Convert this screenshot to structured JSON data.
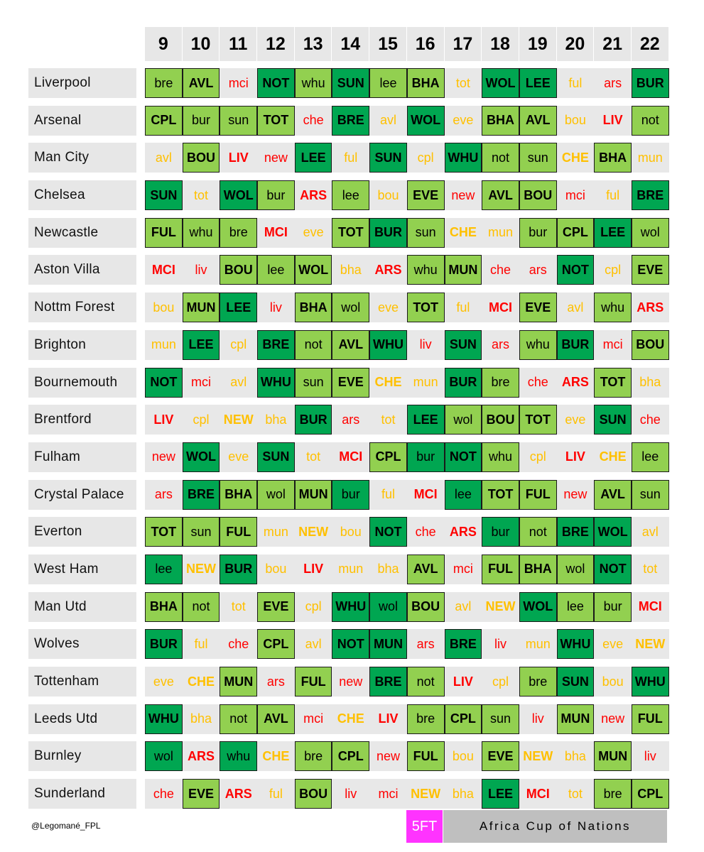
{
  "gameweeks": [
    "9",
    "10",
    "11",
    "12",
    "13",
    "14",
    "15",
    "16",
    "17",
    "18",
    "19",
    "20",
    "21",
    "22"
  ],
  "teams": [
    {
      "name": "Liverpool",
      "fixtures": [
        [
          "bre",
          "c2"
        ],
        [
          "AVL",
          "c2"
        ],
        [
          "mci",
          "c4"
        ],
        [
          "NOT",
          "c1"
        ],
        [
          "whu",
          "c2"
        ],
        [
          "SUN",
          "c1"
        ],
        [
          "lee",
          "c2"
        ],
        [
          "BHA",
          "c2"
        ],
        [
          "tot",
          "c3"
        ],
        [
          "WOL",
          "c1"
        ],
        [
          "LEE",
          "c1"
        ],
        [
          "ful",
          "c3"
        ],
        [
          "ars",
          "c4"
        ],
        [
          "BUR",
          "c1"
        ]
      ]
    },
    {
      "name": "Arsenal",
      "fixtures": [
        [
          "CPL",
          "c2"
        ],
        [
          "bur",
          "c2"
        ],
        [
          "sun",
          "c2"
        ],
        [
          "TOT",
          "c2"
        ],
        [
          "che",
          "c4"
        ],
        [
          "BRE",
          "c1"
        ],
        [
          "avl",
          "c3"
        ],
        [
          "WOL",
          "c1"
        ],
        [
          "eve",
          "c3"
        ],
        [
          "BHA",
          "c2"
        ],
        [
          "AVL",
          "c2"
        ],
        [
          "bou",
          "c3"
        ],
        [
          "LIV",
          "c4"
        ],
        [
          "not",
          "c2"
        ]
      ]
    },
    {
      "name": "Man City",
      "fixtures": [
        [
          "avl",
          "c3"
        ],
        [
          "BOU",
          "c2"
        ],
        [
          "LIV",
          "c4"
        ],
        [
          "new",
          "c4"
        ],
        [
          "LEE",
          "c1"
        ],
        [
          "ful",
          "c3"
        ],
        [
          "SUN",
          "c1"
        ],
        [
          "cpl",
          "c3"
        ],
        [
          "WHU",
          "c1"
        ],
        [
          "not",
          "c2"
        ],
        [
          "sun",
          "c2"
        ],
        [
          "CHE",
          "c3"
        ],
        [
          "BHA",
          "c2"
        ],
        [
          "mun",
          "c3"
        ]
      ]
    },
    {
      "name": "Chelsea",
      "fixtures": [
        [
          "SUN",
          "c1"
        ],
        [
          "tot",
          "c3"
        ],
        [
          "WOL",
          "c1"
        ],
        [
          "bur",
          "c2"
        ],
        [
          "ARS",
          "c4"
        ],
        [
          "lee",
          "c2"
        ],
        [
          "bou",
          "c3"
        ],
        [
          "EVE",
          "c2"
        ],
        [
          "new",
          "c4"
        ],
        [
          "AVL",
          "c2"
        ],
        [
          "BOU",
          "c2"
        ],
        [
          "mci",
          "c4"
        ],
        [
          "ful",
          "c3"
        ],
        [
          "BRE",
          "c1"
        ]
      ]
    },
    {
      "name": "Newcastle",
      "fixtures": [
        [
          "FUL",
          "c2"
        ],
        [
          "whu",
          "c2"
        ],
        [
          "bre",
          "c2"
        ],
        [
          "MCI",
          "c4"
        ],
        [
          "eve",
          "c3"
        ],
        [
          "TOT",
          "c2"
        ],
        [
          "BUR",
          "c1"
        ],
        [
          "sun",
          "c2"
        ],
        [
          "CHE",
          "c3"
        ],
        [
          "mun",
          "c3"
        ],
        [
          "bur",
          "c2"
        ],
        [
          "CPL",
          "c2"
        ],
        [
          "LEE",
          "c1"
        ],
        [
          "wol",
          "c2"
        ]
      ]
    },
    {
      "name": "Aston Villa",
      "fixtures": [
        [
          "MCI",
          "c4"
        ],
        [
          "liv",
          "c4"
        ],
        [
          "BOU",
          "c2"
        ],
        [
          "lee",
          "c2"
        ],
        [
          "WOL",
          "c2"
        ],
        [
          "bha",
          "c3"
        ],
        [
          "ARS",
          "c4"
        ],
        [
          "whu",
          "c2"
        ],
        [
          "MUN",
          "c2"
        ],
        [
          "che",
          "c4"
        ],
        [
          "ars",
          "c4"
        ],
        [
          "NOT",
          "c1"
        ],
        [
          "cpl",
          "c3"
        ],
        [
          "EVE",
          "c2"
        ]
      ]
    },
    {
      "name": "Nottm Forest",
      "fixtures": [
        [
          "bou",
          "c3"
        ],
        [
          "MUN",
          "c2"
        ],
        [
          "LEE",
          "c1"
        ],
        [
          "liv",
          "c4"
        ],
        [
          "BHA",
          "c2"
        ],
        [
          "wol",
          "c2"
        ],
        [
          "eve",
          "c3"
        ],
        [
          "TOT",
          "c2"
        ],
        [
          "ful",
          "c3"
        ],
        [
          "MCI",
          "c4"
        ],
        [
          "EVE",
          "c2"
        ],
        [
          "avl",
          "c3"
        ],
        [
          "whu",
          "c2"
        ],
        [
          "ARS",
          "c4"
        ]
      ]
    },
    {
      "name": "Brighton",
      "fixtures": [
        [
          "mun",
          "c3"
        ],
        [
          "LEE",
          "c1"
        ],
        [
          "cpl",
          "c3"
        ],
        [
          "BRE",
          "c1"
        ],
        [
          "not",
          "c2"
        ],
        [
          "AVL",
          "c2"
        ],
        [
          "WHU",
          "c1"
        ],
        [
          "liv",
          "c4"
        ],
        [
          "SUN",
          "c1"
        ],
        [
          "ars",
          "c4"
        ],
        [
          "whu",
          "c2"
        ],
        [
          "BUR",
          "c1"
        ],
        [
          "mci",
          "c4"
        ],
        [
          "BOU",
          "c2"
        ]
      ]
    },
    {
      "name": "Bournemouth",
      "fixtures": [
        [
          "NOT",
          "c1"
        ],
        [
          "mci",
          "c4"
        ],
        [
          "avl",
          "c3"
        ],
        [
          "WHU",
          "c1"
        ],
        [
          "sun",
          "c2"
        ],
        [
          "EVE",
          "c2"
        ],
        [
          "CHE",
          "c3"
        ],
        [
          "mun",
          "c3"
        ],
        [
          "BUR",
          "c1"
        ],
        [
          "bre",
          "c2"
        ],
        [
          "che",
          "c4"
        ],
        [
          "ARS",
          "c4"
        ],
        [
          "TOT",
          "c2"
        ],
        [
          "bha",
          "c3"
        ]
      ]
    },
    {
      "name": "Brentford",
      "fixtures": [
        [
          "LIV",
          "c4"
        ],
        [
          "cpl",
          "c3"
        ],
        [
          "NEW",
          "c3"
        ],
        [
          "bha",
          "c3"
        ],
        [
          "BUR",
          "c1"
        ],
        [
          "ars",
          "c4"
        ],
        [
          "tot",
          "c3"
        ],
        [
          "LEE",
          "c1"
        ],
        [
          "wol",
          "c2"
        ],
        [
          "BOU",
          "c2"
        ],
        [
          "TOT",
          "c2"
        ],
        [
          "eve",
          "c3"
        ],
        [
          "SUN",
          "c1"
        ],
        [
          "che",
          "c4"
        ]
      ]
    },
    {
      "name": "Fulham",
      "fixtures": [
        [
          "new",
          "c4"
        ],
        [
          "WOL",
          "c1"
        ],
        [
          "eve",
          "c3"
        ],
        [
          "SUN",
          "c1"
        ],
        [
          "tot",
          "c3"
        ],
        [
          "MCI",
          "c4"
        ],
        [
          "CPL",
          "c2"
        ],
        [
          "bur",
          "c1"
        ],
        [
          "NOT",
          "c1"
        ],
        [
          "whu",
          "c2"
        ],
        [
          "cpl",
          "c3"
        ],
        [
          "LIV",
          "c4"
        ],
        [
          "CHE",
          "c3"
        ],
        [
          "lee",
          "c2"
        ]
      ]
    },
    {
      "name": "Crystal Palace",
      "fixtures": [
        [
          "ars",
          "c4"
        ],
        [
          "BRE",
          "c1"
        ],
        [
          "BHA",
          "c2"
        ],
        [
          "wol",
          "c2"
        ],
        [
          "MUN",
          "c2"
        ],
        [
          "bur",
          "c1"
        ],
        [
          "ful",
          "c3"
        ],
        [
          "MCI",
          "c4"
        ],
        [
          "lee",
          "c1"
        ],
        [
          "TOT",
          "c2"
        ],
        [
          "FUL",
          "c2"
        ],
        [
          "new",
          "c4"
        ],
        [
          "AVL",
          "c2"
        ],
        [
          "sun",
          "c2"
        ]
      ]
    },
    {
      "name": "Everton",
      "fixtures": [
        [
          "TOT",
          "c2"
        ],
        [
          "sun",
          "c2"
        ],
        [
          "FUL",
          "c2"
        ],
        [
          "mun",
          "c3"
        ],
        [
          "NEW",
          "c3"
        ],
        [
          "bou",
          "c3"
        ],
        [
          "NOT",
          "c1"
        ],
        [
          "che",
          "c4"
        ],
        [
          "ARS",
          "c4"
        ],
        [
          "bur",
          "c1"
        ],
        [
          "not",
          "c2"
        ],
        [
          "BRE",
          "c1"
        ],
        [
          "WOL",
          "c1"
        ],
        [
          "avl",
          "c3"
        ]
      ]
    },
    {
      "name": "West Ham",
      "fixtures": [
        [
          "lee",
          "c1"
        ],
        [
          "NEW",
          "c3"
        ],
        [
          "BUR",
          "c1"
        ],
        [
          "bou",
          "c3"
        ],
        [
          "LIV",
          "c4"
        ],
        [
          "mun",
          "c3"
        ],
        [
          "bha",
          "c3"
        ],
        [
          "AVL",
          "c2"
        ],
        [
          "mci",
          "c4"
        ],
        [
          "FUL",
          "c2"
        ],
        [
          "BHA",
          "c2"
        ],
        [
          "wol",
          "c2"
        ],
        [
          "NOT",
          "c1"
        ],
        [
          "tot",
          "c3"
        ]
      ]
    },
    {
      "name": "Man Utd",
      "fixtures": [
        [
          "BHA",
          "c2"
        ],
        [
          "not",
          "c2"
        ],
        [
          "tot",
          "c3"
        ],
        [
          "EVE",
          "c2"
        ],
        [
          "cpl",
          "c3"
        ],
        [
          "WHU",
          "c1"
        ],
        [
          "wol",
          "c1"
        ],
        [
          "BOU",
          "c2"
        ],
        [
          "avl",
          "c3"
        ],
        [
          "NEW",
          "c3"
        ],
        [
          "WOL",
          "c1"
        ],
        [
          "lee",
          "c2"
        ],
        [
          "bur",
          "c2"
        ],
        [
          "MCI",
          "c4"
        ]
      ]
    },
    {
      "name": "Wolves",
      "fixtures": [
        [
          "BUR",
          "c1"
        ],
        [
          "ful",
          "c3"
        ],
        [
          "che",
          "c4"
        ],
        [
          "CPL",
          "c2"
        ],
        [
          "avl",
          "c3"
        ],
        [
          "NOT",
          "c1"
        ],
        [
          "MUN",
          "c1"
        ],
        [
          "ars",
          "c4"
        ],
        [
          "BRE",
          "c1"
        ],
        [
          "liv",
          "c4"
        ],
        [
          "mun",
          "c3"
        ],
        [
          "WHU",
          "c1"
        ],
        [
          "eve",
          "c3"
        ],
        [
          "NEW",
          "c3"
        ]
      ]
    },
    {
      "name": "Tottenham",
      "fixtures": [
        [
          "eve",
          "c3"
        ],
        [
          "CHE",
          "c3"
        ],
        [
          "MUN",
          "c2"
        ],
        [
          "ars",
          "c4"
        ],
        [
          "FUL",
          "c2"
        ],
        [
          "new",
          "c4"
        ],
        [
          "BRE",
          "c1"
        ],
        [
          "not",
          "c2"
        ],
        [
          "LIV",
          "c4"
        ],
        [
          "cpl",
          "c3"
        ],
        [
          "bre",
          "c2"
        ],
        [
          "SUN",
          "c1"
        ],
        [
          "bou",
          "c3"
        ],
        [
          "WHU",
          "c1"
        ]
      ]
    },
    {
      "name": "Leeds Utd",
      "fixtures": [
        [
          "WHU",
          "c1"
        ],
        [
          "bha",
          "c3"
        ],
        [
          "not",
          "c2"
        ],
        [
          "AVL",
          "c2"
        ],
        [
          "mci",
          "c4"
        ],
        [
          "CHE",
          "c3"
        ],
        [
          "LIV",
          "c4"
        ],
        [
          "bre",
          "c2"
        ],
        [
          "CPL",
          "c2"
        ],
        [
          "sun",
          "c2"
        ],
        [
          "liv",
          "c4"
        ],
        [
          "MUN",
          "c2"
        ],
        [
          "new",
          "c4"
        ],
        [
          "FUL",
          "c2"
        ]
      ]
    },
    {
      "name": "Burnley",
      "fixtures": [
        [
          "wol",
          "c1"
        ],
        [
          "ARS",
          "c4"
        ],
        [
          "whu",
          "c1"
        ],
        [
          "CHE",
          "c3"
        ],
        [
          "bre",
          "c2"
        ],
        [
          "CPL",
          "c2"
        ],
        [
          "new",
          "c4"
        ],
        [
          "FUL",
          "c2"
        ],
        [
          "bou",
          "c3"
        ],
        [
          "EVE",
          "c2"
        ],
        [
          "NEW",
          "c3"
        ],
        [
          "bha",
          "c3"
        ],
        [
          "MUN",
          "c2"
        ],
        [
          "liv",
          "c4"
        ]
      ]
    },
    {
      "name": "Sunderland",
      "fixtures": [
        [
          "che",
          "c4"
        ],
        [
          "EVE",
          "c2"
        ],
        [
          "ARS",
          "c4"
        ],
        [
          "ful",
          "c3"
        ],
        [
          "BOU",
          "c2"
        ],
        [
          "liv",
          "c4"
        ],
        [
          "mci",
          "c4"
        ],
        [
          "NEW",
          "c3"
        ],
        [
          "bha",
          "c3"
        ],
        [
          "LEE",
          "c1"
        ],
        [
          "MCI",
          "c4"
        ],
        [
          "tot",
          "c3"
        ],
        [
          "bre",
          "c2"
        ],
        [
          "CPL",
          "c2"
        ]
      ]
    }
  ],
  "credit": "@Legomané_FPL",
  "five_ft": "5FT",
  "afcon": "Africa Cup of Nations",
  "colors": {
    "dark_green": "#00a651",
    "light_green": "#92d050",
    "neutral": "#ffc000",
    "hard": "#ff0000",
    "cell_bg": "#e8e8e8",
    "five_ft_bg": "#ff33ff",
    "afcon_bg": "#bfbfbf"
  }
}
